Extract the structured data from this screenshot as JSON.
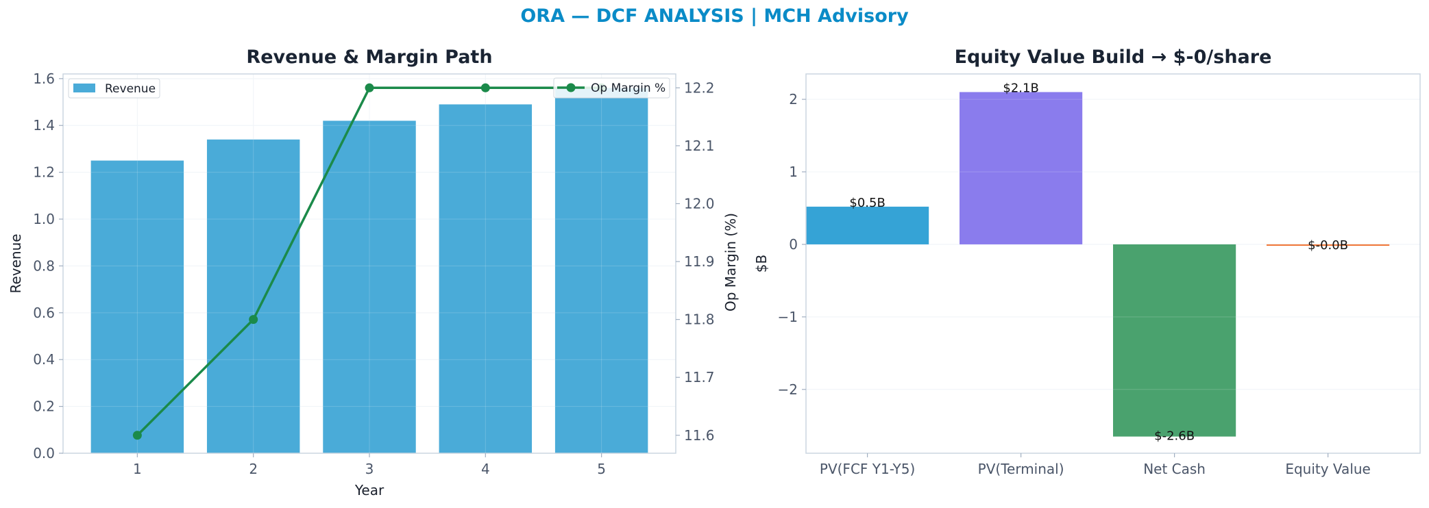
{
  "header": {
    "title": "ORA — DCF ANALYSIS | MCH Advisory"
  },
  "colors": {
    "title": "#0a8bc7",
    "revenue_bar": "#4aabd8",
    "margin_line": "#1b8a4a",
    "waterfall": [
      "#35a3d6",
      "#8a7ced",
      "#4aa26e",
      "#f07a3c"
    ]
  },
  "chart_data": [
    {
      "type": "bar",
      "title": "Revenue & Margin Path",
      "xlabel": "Year",
      "ylabel": "Revenue",
      "y2label": "Op Margin (%)",
      "categories": [
        "1",
        "2",
        "3",
        "4",
        "5"
      ],
      "ylim": [
        0,
        1.62
      ],
      "yticks": [
        "0.0",
        "0.2",
        "0.4",
        "0.6",
        "0.8",
        "1.0",
        "1.2",
        "1.4",
        "1.6"
      ],
      "y2lim": [
        11.569,
        12.224
      ],
      "y2ticks": [
        "11.6",
        "11.7",
        "11.8",
        "11.9",
        "12.0",
        "12.1",
        "12.2"
      ],
      "series": [
        {
          "name": "Revenue",
          "type": "bar",
          "axis": "left",
          "values": [
            1.25,
            1.34,
            1.42,
            1.49,
            1.56
          ]
        },
        {
          "name": "Op Margin %",
          "type": "line",
          "axis": "right",
          "values": [
            11.6,
            11.8,
            12.2,
            12.2,
            12.2
          ]
        }
      ],
      "grid": true,
      "legend": [
        "top-left",
        "top-right"
      ]
    },
    {
      "type": "bar",
      "title": "Equity Value Build → $-0/share",
      "xlabel": "",
      "ylabel": "$B",
      "categories": [
        "PV(FCF Y1-Y5)",
        "PV(Terminal)",
        "Net Cash",
        "Equity Value"
      ],
      "values": [
        0.52,
        2.1,
        -2.65,
        -0.02
      ],
      "data_labels": [
        "$0.5B",
        "$2.1B",
        "$-2.6B",
        "$-0.0B"
      ],
      "ylim": [
        -2.88,
        2.35
      ],
      "yticks": [
        "−2",
        "−1",
        "0",
        "1",
        "2"
      ],
      "grid": true
    }
  ]
}
